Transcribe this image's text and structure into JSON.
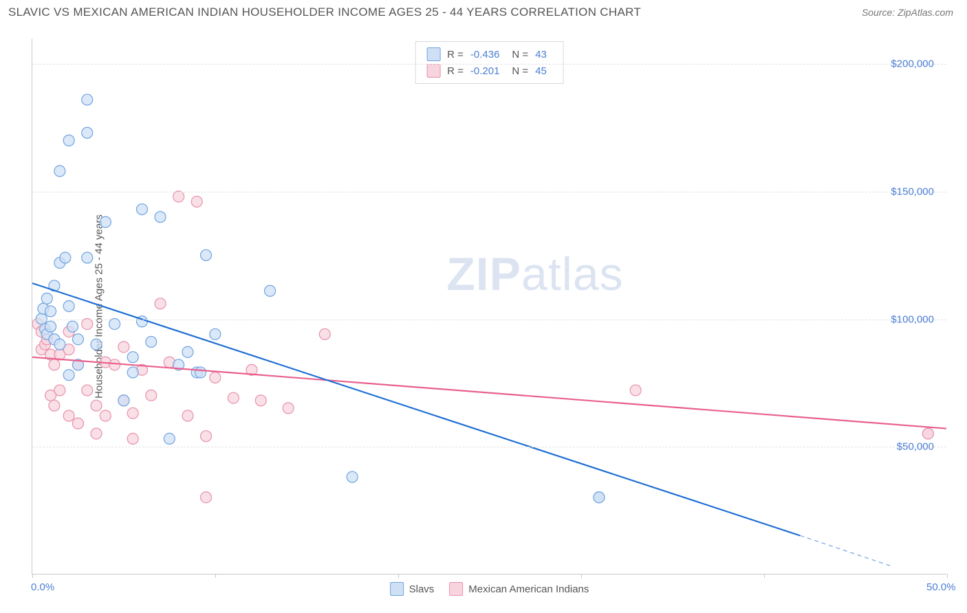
{
  "header": {
    "title": "SLAVIC VS MEXICAN AMERICAN INDIAN HOUSEHOLDER INCOME AGES 25 - 44 YEARS CORRELATION CHART",
    "source": "Source: ZipAtlas.com"
  },
  "watermark": {
    "zip": "ZIP",
    "atlas": "atlas"
  },
  "chart": {
    "type": "scatter",
    "y_axis_label": "Householder Income Ages 25 - 44 years",
    "background_color": "#ffffff",
    "grid_color": "#e2e2e2",
    "axis_color": "#c8c8c8",
    "tick_label_color": "#4a7dd4",
    "label_color": "#555555",
    "label_fontsize": 15,
    "title_fontsize": 17,
    "marker_radius": 8,
    "marker_stroke_width": 1.2,
    "trend_line_width": 2.2,
    "xlim": [
      0,
      50
    ],
    "ylim": [
      0,
      210000
    ],
    "xticks": [
      0,
      10,
      20,
      30,
      40,
      50
    ],
    "xtick_labels": {
      "0": "0.0%",
      "50": "50.0%"
    },
    "yticks": [
      50000,
      100000,
      150000,
      200000
    ],
    "ytick_labels": {
      "50000": "$50,000",
      "100000": "$100,000",
      "150000": "$150,000",
      "200000": "$200,000"
    },
    "stats_box": {
      "rows": [
        {
          "swatch": "blue",
          "r_label": "R =",
          "r": "-0.436",
          "n_label": "N =",
          "n": "43"
        },
        {
          "swatch": "pink",
          "r_label": "R =",
          "r": "-0.201",
          "n_label": "N =",
          "n": "45"
        }
      ]
    },
    "legend": [
      {
        "swatch": "blue",
        "label": "Slavs"
      },
      {
        "swatch": "pink",
        "label": "Mexican American Indians"
      }
    ],
    "series": {
      "blue": {
        "fill": "#cfe0f5",
        "stroke": "#6ea3e0",
        "trend_color": "#1f6fd4",
        "trend": {
          "x1": 0,
          "y1": 114000,
          "x2": 42,
          "y2": 15000,
          "dash_from_x": 42,
          "dash_to": {
            "x": 47,
            "y": 3000
          }
        },
        "points": [
          [
            0.5,
            100000
          ],
          [
            0.6,
            104000
          ],
          [
            0.7,
            96000
          ],
          [
            0.8,
            108000
          ],
          [
            0.8,
            94000
          ],
          [
            1.0,
            103000
          ],
          [
            1.0,
            97000
          ],
          [
            1.2,
            113000
          ],
          [
            1.2,
            92000
          ],
          [
            1.5,
            158000
          ],
          [
            1.5,
            122000
          ],
          [
            1.5,
            90000
          ],
          [
            1.8,
            124000
          ],
          [
            2.0,
            170000
          ],
          [
            2.0,
            105000
          ],
          [
            2.0,
            78000
          ],
          [
            2.2,
            97000
          ],
          [
            2.5,
            92000
          ],
          [
            2.5,
            82000
          ],
          [
            3.0,
            186000
          ],
          [
            3.0,
            173000
          ],
          [
            3.0,
            124000
          ],
          [
            3.5,
            90000
          ],
          [
            4.0,
            138000
          ],
          [
            4.5,
            98000
          ],
          [
            5.0,
            68000
          ],
          [
            5.5,
            85000
          ],
          [
            5.5,
            79000
          ],
          [
            6.0,
            143000
          ],
          [
            6.0,
            99000
          ],
          [
            6.5,
            91000
          ],
          [
            7.0,
            140000
          ],
          [
            7.5,
            53000
          ],
          [
            8.0,
            82000
          ],
          [
            8.5,
            87000
          ],
          [
            9.0,
            79000
          ],
          [
            9.2,
            79000
          ],
          [
            9.5,
            125000
          ],
          [
            10.0,
            94000
          ],
          [
            13.0,
            111000
          ],
          [
            17.5,
            38000
          ],
          [
            31.0,
            30000
          ],
          [
            31.0,
            30000
          ]
        ]
      },
      "pink": {
        "fill": "#f7d4de",
        "stroke": "#e890ab",
        "trend_color": "#e95f8c",
        "trend": {
          "x1": 0,
          "y1": 85000,
          "x2": 50,
          "y2": 57000
        },
        "points": [
          [
            0.3,
            98000
          ],
          [
            0.5,
            95000
          ],
          [
            0.5,
            88000
          ],
          [
            0.7,
            90000
          ],
          [
            0.8,
            92000
          ],
          [
            1.0,
            86000
          ],
          [
            1.0,
            70000
          ],
          [
            1.2,
            82000
          ],
          [
            1.2,
            66000
          ],
          [
            1.5,
            86000
          ],
          [
            1.5,
            72000
          ],
          [
            2.0,
            95000
          ],
          [
            2.0,
            88000
          ],
          [
            2.0,
            62000
          ],
          [
            2.5,
            82000
          ],
          [
            2.5,
            59000
          ],
          [
            3.0,
            98000
          ],
          [
            3.0,
            72000
          ],
          [
            3.5,
            66000
          ],
          [
            3.5,
            55000
          ],
          [
            4.0,
            83000
          ],
          [
            4.0,
            62000
          ],
          [
            4.5,
            82000
          ],
          [
            5.0,
            68000
          ],
          [
            5.0,
            89000
          ],
          [
            5.5,
            63000
          ],
          [
            5.5,
            53000
          ],
          [
            6.0,
            80000
          ],
          [
            6.5,
            70000
          ],
          [
            7.0,
            106000
          ],
          [
            7.5,
            83000
          ],
          [
            8.0,
            148000
          ],
          [
            8.5,
            62000
          ],
          [
            9.0,
            146000
          ],
          [
            9.5,
            54000
          ],
          [
            9.5,
            30000
          ],
          [
            10.0,
            77000
          ],
          [
            11.0,
            69000
          ],
          [
            12.0,
            80000
          ],
          [
            12.5,
            68000
          ],
          [
            14.0,
            65000
          ],
          [
            16.0,
            94000
          ],
          [
            33.0,
            72000
          ],
          [
            49.0,
            55000
          ],
          [
            49.0,
            55000
          ]
        ]
      }
    }
  }
}
